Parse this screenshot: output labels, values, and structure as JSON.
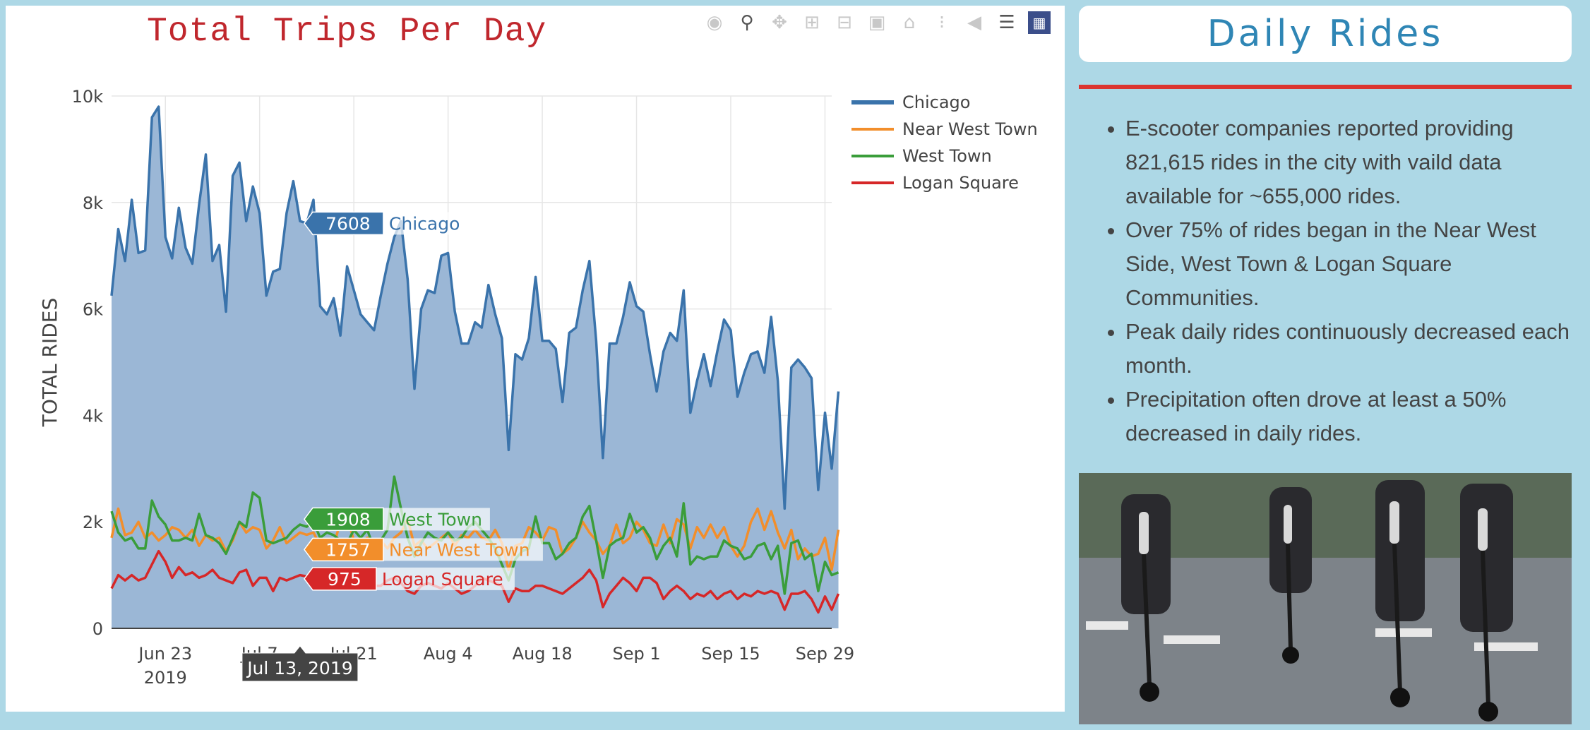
{
  "chart_data": {
    "type": "area",
    "title": "Total Trips Per Day",
    "ylabel": "TOTAL RIDES",
    "xlabel": "",
    "x_start": "2019-06-15",
    "x_end": "2019-09-30",
    "xlim": [
      "2019-06-15",
      "2019-09-30"
    ],
    "ylim": [
      0,
      10000
    ],
    "y_ticks": [
      0,
      2000,
      4000,
      6000,
      8000,
      10000
    ],
    "y_tick_labels": [
      "0",
      "2k",
      "4k",
      "6k",
      "8k",
      "10k"
    ],
    "x_ticks": [
      "2019-06-23",
      "2019-07-07",
      "2019-07-21",
      "2019-08-04",
      "2019-08-18",
      "2019-09-01",
      "2019-09-15",
      "2019-09-29"
    ],
    "x_tick_labels": [
      "Jun 23",
      "Jul 7",
      "Jul 21",
      "Aug 4",
      "Aug 18",
      "Sep 1",
      "Sep 15",
      "Sep 29"
    ],
    "x_tick_year": "2019",
    "grid": true,
    "legend_position": "top-right",
    "series": [
      {
        "name": "Chicago",
        "color": "#3a73ab",
        "fill": true,
        "values": [
          6250,
          7500,
          6900,
          8050,
          7050,
          7100,
          9600,
          9800,
          7350,
          6950,
          7900,
          7150,
          6850,
          7950,
          8900,
          6900,
          7200,
          5950,
          8500,
          8750,
          7650,
          8300,
          7800,
          6250,
          6700,
          6750,
          7800,
          8400,
          7650,
          7608,
          8050,
          6050,
          5900,
          6200,
          5500,
          6800,
          6350,
          5900,
          5750,
          5600,
          6250,
          6850,
          7350,
          7650,
          6550,
          4500,
          6000,
          6350,
          6300,
          7000,
          7050,
          5950,
          5350,
          5350,
          5750,
          5650,
          6450,
          5900,
          5450,
          3350,
          5150,
          5050,
          5450,
          6600,
          5400,
          5400,
          5250,
          4250,
          5550,
          5650,
          6350,
          6900,
          5400,
          3200,
          5350,
          5350,
          5850,
          6500,
          6050,
          5950,
          5150,
          4450,
          5200,
          5550,
          5400,
          6350,
          4050,
          4650,
          5150,
          4550,
          5200,
          5800,
          5600,
          4350,
          4800,
          5150,
          5200,
          4800,
          5850,
          4650,
          2250,
          4900,
          5050,
          4900,
          4700,
          2600,
          4050,
          3000,
          4450
        ]
      },
      {
        "name": "Near West Town",
        "color": "#f28e2b",
        "fill": false,
        "values": [
          1700,
          2250,
          1750,
          1800,
          2000,
          1700,
          1800,
          1650,
          1750,
          1900,
          1850,
          1700,
          1850,
          1550,
          1750,
          1650,
          1700,
          1450,
          1650,
          2000,
          1800,
          1900,
          1850,
          1500,
          1650,
          1900,
          1600,
          1700,
          1800,
          1757,
          1800,
          1550,
          1600,
          1550,
          2000,
          2100,
          1650,
          1600,
          1700,
          1650,
          1650,
          1500,
          1700,
          1800,
          2050,
          1550,
          1650,
          1500,
          1600,
          1700,
          1800,
          1550,
          1750,
          1700,
          1850,
          1700,
          1650,
          1850,
          1600,
          1100,
          1550,
          1600,
          1900,
          1800,
          1650,
          1900,
          1850,
          1400,
          1500,
          1700,
          2000,
          1800,
          1650,
          1400,
          1550,
          1950,
          1600,
          1700,
          2000,
          1850,
          1600,
          1550,
          1950,
          1600,
          2050,
          1950,
          1500,
          1900,
          1700,
          1950,
          1700,
          1900,
          1550,
          1350,
          1550,
          2000,
          2250,
          1850,
          2200,
          1800,
          1500,
          1850,
          1300,
          1500,
          1350,
          1400,
          1700,
          1100,
          1850
        ]
      },
      {
        "name": "West Town",
        "color": "#3a9d3a",
        "fill": false,
        "values": [
          2200,
          1800,
          1650,
          1700,
          1500,
          1500,
          2400,
          2100,
          1950,
          1650,
          1650,
          1700,
          1650,
          2150,
          1750,
          1700,
          1600,
          1400,
          1700,
          2000,
          1900,
          2550,
          2450,
          1650,
          1600,
          1650,
          1700,
          1850,
          1950,
          1908,
          2000,
          1700,
          1800,
          1750,
          1650,
          1600,
          1850,
          1700,
          1850,
          1500,
          1650,
          1850,
          2850,
          2250,
          1700,
          1350,
          1600,
          1800,
          1700,
          1650,
          1800,
          1650,
          1700,
          1900,
          2000,
          1850,
          1700,
          1500,
          1200,
          900,
          1300,
          1450,
          1500,
          2100,
          1600,
          1600,
          1300,
          1400,
          1600,
          1700,
          2100,
          2300,
          1650,
          950,
          1550,
          1650,
          1700,
          2150,
          1800,
          1900,
          1700,
          1300,
          1550,
          1700,
          1350,
          2350,
          1200,
          1350,
          1300,
          1350,
          1350,
          1650,
          1550,
          1500,
          1300,
          1350,
          1550,
          1600,
          1300,
          1550,
          650,
          1600,
          1650,
          1300,
          1400,
          700,
          1250,
          1000,
          1050
        ]
      },
      {
        "name": "Logan Square",
        "color": "#d62728",
        "fill": false,
        "values": [
          750,
          1000,
          900,
          1000,
          900,
          950,
          1200,
          1450,
          1250,
          950,
          1150,
          1000,
          1050,
          950,
          1000,
          1100,
          950,
          900,
          850,
          1050,
          1100,
          800,
          950,
          950,
          700,
          950,
          900,
          950,
          1000,
          975,
          1050,
          1100,
          950,
          950,
          900,
          800,
          1000,
          850,
          900,
          800,
          800,
          900,
          950,
          850,
          700,
          650,
          800,
          850,
          800,
          750,
          850,
          750,
          650,
          700,
          800,
          950,
          900,
          850,
          800,
          500,
          750,
          700,
          700,
          800,
          800,
          750,
          700,
          650,
          750,
          850,
          950,
          1100,
          900,
          400,
          650,
          800,
          950,
          850,
          700,
          950,
          950,
          850,
          550,
          700,
          800,
          700,
          550,
          650,
          600,
          700,
          550,
          650,
          700,
          550,
          650,
          600,
          700,
          650,
          700,
          650,
          350,
          650,
          650,
          700,
          550,
          300,
          600,
          350,
          650
        ]
      }
    ],
    "hover": {
      "date_label": "Jul 13, 2019",
      "labels": [
        {
          "series": "Chicago",
          "value": "7608",
          "text": "Chicago"
        },
        {
          "series": "West Town",
          "value": "1908",
          "text": "West Town"
        },
        {
          "series": "Near West Town",
          "value": "1757",
          "text": "Near West Town"
        },
        {
          "series": "Logan Square",
          "value": "975",
          "text": "Logan Square"
        }
      ]
    }
  },
  "modebar": {
    "icons": [
      "camera-icon",
      "zoom-icon",
      "pan-icon",
      "zoom-in-icon",
      "zoom-out-icon",
      "autoscale-icon",
      "home-icon",
      "spike-lines-icon",
      "hover-closest-icon",
      "hover-compare-icon",
      "plotly-logo-icon"
    ]
  },
  "panel": {
    "title": "Daily Rides",
    "bullets": [
      "E-scooter companies reported providing 821,615 rides in the city with vaild data available for ~655,000 rides.",
      "Over 75% of rides began in the Near West Side, West Town & Logan Square Communities.",
      "Peak daily rides continuously decreased each month.",
      "Precipitation often drove at least a 50% decreased in daily rides."
    ],
    "photo": "scooter-riders-photo",
    "accent_color": "#dc3530",
    "title_color": "#2f86b5"
  }
}
